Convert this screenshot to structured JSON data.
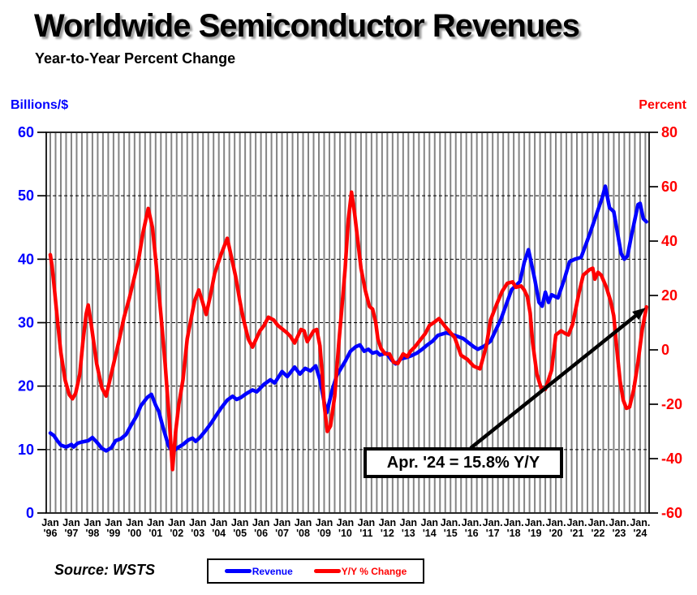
{
  "header": {
    "title": "Worldwide Semiconductor Revenues",
    "subtitle": "Year-to-Year Percent Change"
  },
  "source_label": "Source: WSTS",
  "legend": {
    "items": [
      {
        "label": "Revenue",
        "color": "#0000ff"
      },
      {
        "label": "Y/Y % Change",
        "color": "#ff0000"
      }
    ]
  },
  "chart_data": {
    "type": "line",
    "title": "Worldwide Semiconductor Revenues",
    "subtitle": "Year-to-Year Percent Change",
    "left_axis": {
      "label": "Billions/$",
      "color": "#0000ff",
      "range": [
        0,
        60
      ],
      "ticks": [
        0,
        10,
        20,
        30,
        40,
        50,
        60
      ]
    },
    "right_axis": {
      "label": "Percent",
      "color": "#ff0000",
      "range": [
        -60,
        80
      ],
      "ticks": [
        -60,
        -40,
        -20,
        0,
        20,
        40,
        60,
        80
      ]
    },
    "x_axis": {
      "start_year": 1996,
      "labels": [
        {
          "month": "Jan",
          "year": "'96"
        },
        {
          "month": "Jan",
          "year": "'97"
        },
        {
          "month": "Jan",
          "year": "'98"
        },
        {
          "month": "Jan",
          "year": "'99"
        },
        {
          "month": "Jan",
          "year": "'00"
        },
        {
          "month": "Jan",
          "year": "'01"
        },
        {
          "month": "Jan",
          "year": "'02"
        },
        {
          "month": "Jan",
          "year": "'03"
        },
        {
          "month": "Jan",
          "year": "'04"
        },
        {
          "month": "Jan",
          "year": "'05"
        },
        {
          "month": "Jan",
          "year": "'06"
        },
        {
          "month": "Jan",
          "year": "'07"
        },
        {
          "month": "Jan",
          "year": "'08"
        },
        {
          "month": "Jan",
          "year": "'09"
        },
        {
          "month": "Jan",
          "year": "'10"
        },
        {
          "month": "Jan",
          "year": "'11"
        },
        {
          "month": "Jan",
          "year": "'12"
        },
        {
          "month": "Jan",
          "year": "'13"
        },
        {
          "month": "Jan",
          "year": "'14"
        },
        {
          "month": "Jan.",
          "year": "'15"
        },
        {
          "month": "Jan.",
          "year": "'16"
        },
        {
          "month": "Jan.",
          "year": "'17"
        },
        {
          "month": "Jan.",
          "year": "'18"
        },
        {
          "month": "Jan.",
          "year": "'19"
        },
        {
          "month": "Jan.",
          "year": "'20"
        },
        {
          "month": "Jan.",
          "year": "'21"
        },
        {
          "month": "Jan.",
          "year": "'22"
        },
        {
          "month": "Jan.",
          "year": "'23"
        },
        {
          "month": "Jan.",
          "year": "'24"
        }
      ]
    },
    "grid": {
      "vertical_interval_years": 0.25,
      "horizontal_ticks": [
        10,
        20,
        30,
        40,
        50
      ],
      "color": "#848484"
    },
    "annotation": {
      "text": "Apr. '24 = 15.8% Y/Y"
    },
    "series": [
      {
        "name": "Revenue",
        "axis": "left",
        "color": "#0000ff",
        "units": "billions_usd",
        "points": [
          [
            1996.0,
            12.6
          ],
          [
            1996.17,
            12.2
          ],
          [
            1996.33,
            11.4
          ],
          [
            1996.5,
            10.7
          ],
          [
            1996.75,
            10.4
          ],
          [
            1997.0,
            10.8
          ],
          [
            1997.1,
            10.4
          ],
          [
            1997.3,
            11.0
          ],
          [
            1997.5,
            11.2
          ],
          [
            1997.8,
            11.4
          ],
          [
            1998.0,
            11.9
          ],
          [
            1998.2,
            11.2
          ],
          [
            1998.45,
            10.2
          ],
          [
            1998.65,
            9.8
          ],
          [
            1998.9,
            10.3
          ],
          [
            1999.1,
            11.4
          ],
          [
            1999.35,
            11.7
          ],
          [
            1999.6,
            12.4
          ],
          [
            1999.85,
            13.9
          ],
          [
            2000.1,
            15.3
          ],
          [
            2000.3,
            16.9
          ],
          [
            2000.6,
            18.2
          ],
          [
            2000.8,
            18.7
          ],
          [
            2001.0,
            17.0
          ],
          [
            2001.15,
            16.0
          ],
          [
            2001.35,
            13.5
          ],
          [
            2001.6,
            10.7
          ],
          [
            2001.8,
            9.6
          ],
          [
            2002.0,
            10.2
          ],
          [
            2002.3,
            10.8
          ],
          [
            2002.55,
            11.5
          ],
          [
            2002.75,
            11.8
          ],
          [
            2002.9,
            11.3
          ],
          [
            2003.1,
            11.9
          ],
          [
            2003.35,
            12.9
          ],
          [
            2003.6,
            14.0
          ],
          [
            2003.9,
            15.5
          ],
          [
            2004.1,
            16.5
          ],
          [
            2004.4,
            17.8
          ],
          [
            2004.65,
            18.4
          ],
          [
            2004.85,
            17.9
          ],
          [
            2005.05,
            18.2
          ],
          [
            2005.3,
            18.8
          ],
          [
            2005.6,
            19.4
          ],
          [
            2005.8,
            19.1
          ],
          [
            2006.15,
            20.3
          ],
          [
            2006.45,
            21.0
          ],
          [
            2006.65,
            20.5
          ],
          [
            2007.0,
            22.3
          ],
          [
            2007.25,
            21.5
          ],
          [
            2007.6,
            23.0
          ],
          [
            2007.85,
            21.9
          ],
          [
            2008.1,
            22.8
          ],
          [
            2008.35,
            22.4
          ],
          [
            2008.6,
            23.2
          ],
          [
            2008.8,
            21.0
          ],
          [
            2009.0,
            17.5
          ],
          [
            2009.12,
            15.8
          ],
          [
            2009.4,
            19.6
          ],
          [
            2009.6,
            21.7
          ],
          [
            2009.8,
            22.8
          ],
          [
            2010.0,
            23.9
          ],
          [
            2010.25,
            25.5
          ],
          [
            2010.5,
            26.2
          ],
          [
            2010.7,
            26.5
          ],
          [
            2010.9,
            25.5
          ],
          [
            2011.1,
            25.8
          ],
          [
            2011.3,
            25.2
          ],
          [
            2011.5,
            25.4
          ],
          [
            2011.65,
            24.9
          ],
          [
            2011.95,
            25.2
          ],
          [
            2012.2,
            24.1
          ],
          [
            2012.4,
            23.5
          ],
          [
            2012.65,
            24.3
          ],
          [
            2012.9,
            24.5
          ],
          [
            2013.15,
            24.8
          ],
          [
            2013.4,
            25.2
          ],
          [
            2013.65,
            25.8
          ],
          [
            2013.9,
            26.5
          ],
          [
            2014.15,
            27.1
          ],
          [
            2014.4,
            28.0
          ],
          [
            2014.8,
            28.4
          ],
          [
            2015.2,
            28.0
          ],
          [
            2015.6,
            27.5
          ],
          [
            2016.1,
            26.2
          ],
          [
            2016.3,
            25.8
          ],
          [
            2016.6,
            26.3
          ],
          [
            2016.9,
            27.1
          ],
          [
            2017.4,
            30.6
          ],
          [
            2017.9,
            35.2
          ],
          [
            2018.3,
            36.5
          ],
          [
            2018.5,
            39.5
          ],
          [
            2018.7,
            41.5
          ],
          [
            2019.0,
            36.8
          ],
          [
            2019.2,
            33.2
          ],
          [
            2019.35,
            32.6
          ],
          [
            2019.5,
            34.8
          ],
          [
            2019.65,
            33.2
          ],
          [
            2019.8,
            34.4
          ],
          [
            2020.1,
            33.9
          ],
          [
            2020.4,
            36.8
          ],
          [
            2020.65,
            39.6
          ],
          [
            2020.9,
            40.0
          ],
          [
            2021.2,
            40.3
          ],
          [
            2021.6,
            43.9
          ],
          [
            2021.9,
            46.8
          ],
          [
            2022.2,
            49.7
          ],
          [
            2022.35,
            51.5
          ],
          [
            2022.55,
            48.1
          ],
          [
            2022.75,
            47.5
          ],
          [
            2023.1,
            40.9
          ],
          [
            2023.25,
            40.0
          ],
          [
            2023.4,
            40.5
          ],
          [
            2023.6,
            43.9
          ],
          [
            2023.9,
            48.6
          ],
          [
            2024.0,
            48.8
          ],
          [
            2024.15,
            46.4
          ],
          [
            2024.3,
            45.9
          ]
        ]
      },
      {
        "name": "Y/Y % Change",
        "axis": "right",
        "color": "#ff0000",
        "units": "percent",
        "points": [
          [
            1996.0,
            35
          ],
          [
            1996.08,
            31
          ],
          [
            1996.2,
            22
          ],
          [
            1996.35,
            10
          ],
          [
            1996.5,
            -1
          ],
          [
            1996.7,
            -11
          ],
          [
            1996.9,
            -16.5
          ],
          [
            1997.05,
            -18
          ],
          [
            1997.2,
            -16
          ],
          [
            1997.4,
            -9
          ],
          [
            1997.55,
            3
          ],
          [
            1997.7,
            13
          ],
          [
            1997.8,
            16.5
          ],
          [
            1997.95,
            9
          ],
          [
            1998.2,
            -5
          ],
          [
            1998.45,
            -14
          ],
          [
            1998.65,
            -17
          ],
          [
            1998.95,
            -7
          ],
          [
            1999.25,
            3
          ],
          [
            1999.5,
            12
          ],
          [
            1999.75,
            19
          ],
          [
            2000.0,
            27
          ],
          [
            2000.2,
            33.5
          ],
          [
            2000.4,
            43
          ],
          [
            2000.65,
            52
          ],
          [
            2000.85,
            45
          ],
          [
            2001.0,
            33.5
          ],
          [
            2001.25,
            13
          ],
          [
            2001.45,
            -5
          ],
          [
            2001.65,
            -26
          ],
          [
            2001.8,
            -44
          ],
          [
            2001.95,
            -30
          ],
          [
            2002.1,
            -20
          ],
          [
            2002.3,
            -11
          ],
          [
            2002.5,
            4
          ],
          [
            2002.85,
            18
          ],
          [
            2003.05,
            22
          ],
          [
            2003.25,
            17
          ],
          [
            2003.4,
            13
          ],
          [
            2003.6,
            20
          ],
          [
            2003.8,
            28
          ],
          [
            2004.1,
            35
          ],
          [
            2004.4,
            41
          ],
          [
            2004.6,
            34
          ],
          [
            2004.8,
            27
          ],
          [
            2005.0,
            18
          ],
          [
            2005.15,
            12
          ],
          [
            2005.4,
            4
          ],
          [
            2005.6,
            1
          ],
          [
            2005.95,
            7
          ],
          [
            2006.15,
            9
          ],
          [
            2006.35,
            12
          ],
          [
            2006.6,
            11
          ],
          [
            2006.8,
            9
          ],
          [
            2007.2,
            6.5
          ],
          [
            2007.4,
            5
          ],
          [
            2007.6,
            2.5
          ],
          [
            2007.9,
            7.5
          ],
          [
            2008.05,
            7
          ],
          [
            2008.2,
            3
          ],
          [
            2008.5,
            7
          ],
          [
            2008.65,
            7.5
          ],
          [
            2008.8,
            1.5
          ],
          [
            2008.9,
            -8
          ],
          [
            2009.0,
            -20
          ],
          [
            2009.15,
            -30
          ],
          [
            2009.3,
            -28
          ],
          [
            2009.5,
            -17
          ],
          [
            2009.6,
            -7
          ],
          [
            2009.7,
            3
          ],
          [
            2009.85,
            16
          ],
          [
            2010.0,
            30
          ],
          [
            2010.15,
            48
          ],
          [
            2010.3,
            58
          ],
          [
            2010.45,
            50
          ],
          [
            2010.6,
            40
          ],
          [
            2010.75,
            30
          ],
          [
            2010.95,
            22
          ],
          [
            2011.15,
            16
          ],
          [
            2011.3,
            15
          ],
          [
            2011.45,
            10
          ],
          [
            2011.55,
            4
          ],
          [
            2011.7,
            0.5
          ],
          [
            2011.9,
            -1.5
          ],
          [
            2012.1,
            -1.5
          ],
          [
            2012.3,
            -4.5
          ],
          [
            2012.5,
            -5
          ],
          [
            2012.75,
            -1.5
          ],
          [
            2012.95,
            -2.5
          ],
          [
            2013.1,
            -0.5
          ],
          [
            2013.3,
            1
          ],
          [
            2013.6,
            4
          ],
          [
            2013.8,
            6
          ],
          [
            2014.0,
            9
          ],
          [
            2014.2,
            10
          ],
          [
            2014.45,
            11.5
          ],
          [
            2014.75,
            8.5
          ],
          [
            2015.2,
            4.5
          ],
          [
            2015.5,
            -2
          ],
          [
            2015.8,
            -3.5
          ],
          [
            2016.1,
            -6
          ],
          [
            2016.4,
            -7
          ],
          [
            2016.7,
            1.5
          ],
          [
            2016.9,
            11
          ],
          [
            2017.2,
            17
          ],
          [
            2017.45,
            21.5
          ],
          [
            2017.7,
            24.5
          ],
          [
            2017.95,
            25
          ],
          [
            2018.1,
            23
          ],
          [
            2018.35,
            23.5
          ],
          [
            2018.5,
            22
          ],
          [
            2018.65,
            19.5
          ],
          [
            2018.78,
            13.5
          ],
          [
            2018.9,
            2.5
          ],
          [
            2019.1,
            -9
          ],
          [
            2019.3,
            -14
          ],
          [
            2019.5,
            -14.5
          ],
          [
            2019.8,
            -7.5
          ],
          [
            2020.0,
            5.5
          ],
          [
            2020.25,
            7
          ],
          [
            2020.45,
            6
          ],
          [
            2020.6,
            5.5
          ],
          [
            2020.8,
            9.5
          ],
          [
            2021.1,
            21
          ],
          [
            2021.3,
            27.5
          ],
          [
            2021.6,
            29.5
          ],
          [
            2021.75,
            30
          ],
          [
            2021.85,
            26
          ],
          [
            2022.0,
            28.5
          ],
          [
            2022.15,
            27.5
          ],
          [
            2022.4,
            23
          ],
          [
            2022.6,
            18
          ],
          [
            2022.75,
            12.5
          ],
          [
            2022.9,
            0
          ],
          [
            2023.05,
            -11.5
          ],
          [
            2023.2,
            -18.5
          ],
          [
            2023.35,
            -21.5
          ],
          [
            2023.5,
            -21
          ],
          [
            2023.7,
            -14.5
          ],
          [
            2023.9,
            -4.5
          ],
          [
            2024.1,
            7.5
          ],
          [
            2024.3,
            15.8
          ]
        ]
      }
    ]
  }
}
